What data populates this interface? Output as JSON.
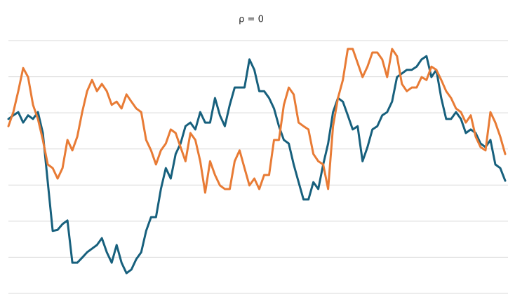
{
  "chart_data": {
    "type": "line",
    "title": "ρ = 0",
    "ylim": [
      -4,
      3
    ],
    "yticks": [
      -4,
      -3,
      -2,
      -1,
      0,
      1,
      2,
      3
    ],
    "grid": true,
    "series": [
      {
        "color": "#17607d",
        "values": [
          0.83,
          0.93,
          1.02,
          0.73,
          0.93,
          0.83,
          1.02,
          0.44,
          -0.92,
          -2.27,
          -2.24,
          -2.08,
          -1.98,
          -3.15,
          -3.15,
          -3.01,
          -2.86,
          -2.76,
          -2.66,
          -2.47,
          -2.86,
          -3.15,
          -2.66,
          -3.15,
          -3.44,
          -3.34,
          -3.05,
          -2.86,
          -2.27,
          -1.89,
          -1.89,
          -1.11,
          -0.53,
          -0.82,
          -0.14,
          0.15,
          0.63,
          0.73,
          0.54,
          1.02,
          0.73,
          0.73,
          1.41,
          0.93,
          0.63,
          1.22,
          1.7,
          1.7,
          1.7,
          2.48,
          2.19,
          1.6,
          1.6,
          1.41,
          1.12,
          0.63,
          0.25,
          0.15,
          -0.43,
          -0.92,
          -1.4,
          -1.4,
          -0.92,
          -1.11,
          -0.43,
          0.15,
          1.02,
          1.41,
          1.31,
          0.93,
          0.54,
          0.63,
          -0.34,
          0.05,
          0.54,
          0.63,
          0.93,
          1.02,
          1.31,
          1.99,
          2.09,
          2.19,
          2.19,
          2.28,
          2.48,
          2.57,
          1.99,
          2.19,
          1.41,
          0.83,
          0.83,
          1.02,
          0.83,
          0.44,
          0.54,
          0.44,
          0.15,
          0.05,
          0.25,
          -0.43,
          -0.53,
          -0.88
        ]
      },
      {
        "color": "#e87b35",
        "values": [
          0.63,
          1.02,
          1.6,
          2.24,
          1.99,
          1.22,
          0.83,
          0.25,
          -0.43,
          -0.53,
          -0.82,
          -0.53,
          0.25,
          -0.04,
          0.34,
          1.02,
          1.6,
          1.91,
          1.6,
          1.8,
          1.6,
          1.22,
          1.31,
          1.12,
          1.51,
          1.31,
          1.12,
          1.02,
          0.25,
          -0.04,
          -0.43,
          -0.04,
          0.15,
          0.54,
          0.44,
          0.05,
          -0.34,
          0.44,
          0.25,
          -0.34,
          -1.21,
          -0.34,
          -0.72,
          -1.01,
          -1.11,
          -1.11,
          -0.34,
          -0.04,
          -0.53,
          -1.01,
          -0.82,
          -1.11,
          -0.72,
          -0.72,
          0.25,
          0.25,
          1.22,
          1.7,
          1.51,
          0.73,
          0.63,
          0.54,
          -0.14,
          -0.34,
          -0.43,
          -1.11,
          0.63,
          1.41,
          1.91,
          2.77,
          2.77,
          2.38,
          1.99,
          2.28,
          2.67,
          2.67,
          2.48,
          1.99,
          2.77,
          2.57,
          1.8,
          1.6,
          1.7,
          1.7,
          1.99,
          1.91,
          2.28,
          2.19,
          1.91,
          1.6,
          1.41,
          1.12,
          1.02,
          0.73,
          0.93,
          0.34,
          0.05,
          -0.04,
          1.02,
          0.73,
          0.34,
          -0.14
        ]
      }
    ]
  }
}
